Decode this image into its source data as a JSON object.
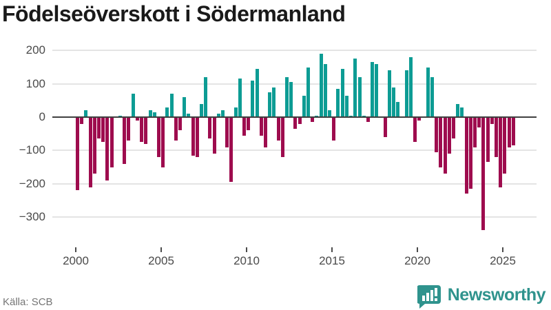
{
  "title": "Födelseöverskott i Södermanland",
  "source": "Källa: SCB",
  "logo": {
    "text": "Newsworthy"
  },
  "chart_data": {
    "type": "bar",
    "title": "Födelseöverskott i Södermanland",
    "frequency": "quarterly",
    "x_start": "2000-Q1",
    "x_end": "2025-Q3",
    "start_year": 2000,
    "values": [
      -220,
      -20,
      20,
      -210,
      -170,
      -65,
      -75,
      -190,
      -150,
      0,
      5,
      -140,
      -70,
      70,
      -10,
      -75,
      -80,
      20,
      15,
      -120,
      -150,
      30,
      70,
      -70,
      -40,
      60,
      10,
      -115,
      -120,
      40,
      120,
      -65,
      -110,
      10,
      20,
      -90,
      -195,
      30,
      115,
      -55,
      -40,
      110,
      145,
      -55,
      -90,
      75,
      90,
      -70,
      -120,
      120,
      105,
      -35,
      -20,
      65,
      150,
      -15,
      5,
      190,
      160,
      20,
      -70,
      85,
      145,
      65,
      5,
      175,
      120,
      5,
      -15,
      165,
      160,
      0,
      -60,
      140,
      90,
      45,
      0,
      140,
      180,
      -75,
      -10,
      0,
      150,
      120,
      -105,
      -150,
      -170,
      -110,
      -65,
      40,
      30,
      -230,
      -215,
      -90,
      -30,
      -340,
      -135,
      -20,
      -120,
      -210,
      -170,
      -90,
      -85
    ],
    "y_ticks": [
      200,
      100,
      0,
      -100,
      -200,
      -300
    ],
    "x_tick_years": [
      2000,
      2005,
      2010,
      2015,
      2020,
      2025
    ],
    "ylim": [
      -360,
      215
    ],
    "grid": true,
    "legend": "none",
    "colors": {
      "positive": "#0d9c94",
      "negative": "#9e0c4e"
    }
  }
}
